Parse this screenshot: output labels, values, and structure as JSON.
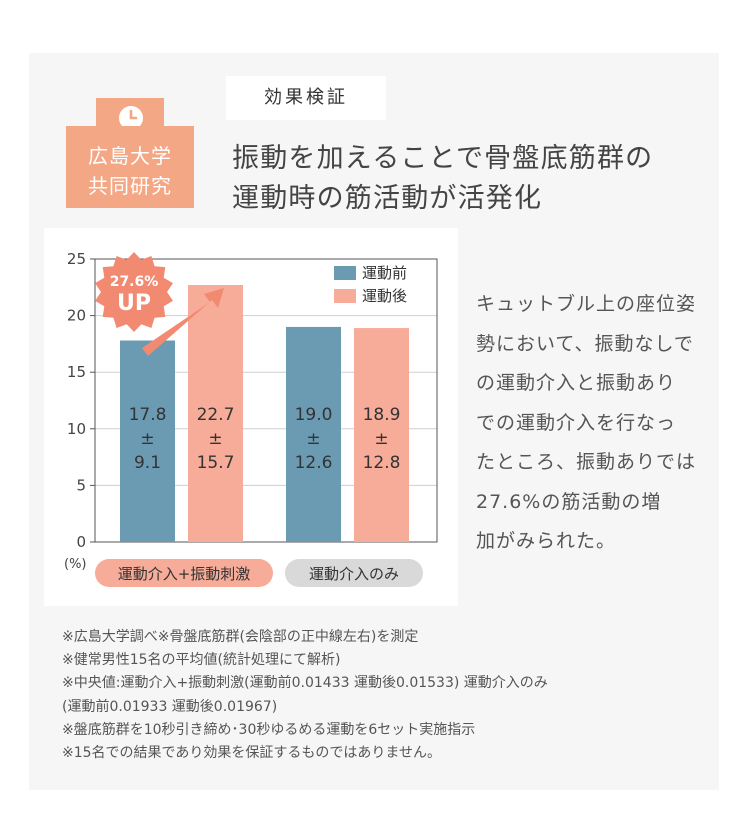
{
  "badge": {
    "line1": "広島大学",
    "line2": "共同研究",
    "icon": "clock-icon"
  },
  "label": "効果検証",
  "headline": {
    "line1": "振動を加えることで骨盤底筋群の",
    "line2": "運動時の筋活動が活発化"
  },
  "chart_data": {
    "type": "bar",
    "title": "",
    "ylabel": "(%)",
    "ylim": [
      0,
      25
    ],
    "yticks": [
      "0",
      "5",
      "10",
      "15",
      "20",
      "25"
    ],
    "categories": [
      "運動介入+振動刺激",
      "運動介入のみ"
    ],
    "series": [
      {
        "name": "運動前",
        "values": [
          17.8,
          19.0
        ],
        "labels": [
          [
            "17.8",
            "±",
            "9.1"
          ],
          [
            "19.0",
            "±",
            "12.6"
          ]
        ],
        "color": "#6b9ab3"
      },
      {
        "name": "運動後",
        "values": [
          22.7,
          18.9
        ],
        "labels": [
          [
            "22.7",
            "±",
            "15.7"
          ],
          [
            "18.9",
            "±",
            "12.8"
          ]
        ],
        "color": "#f6ac98"
      }
    ],
    "category_colors": [
      "#f6ac98",
      "#d9d9d9"
    ],
    "legend_position": "top-right",
    "annotation": {
      "line1": "27.6%",
      "line2": "UP",
      "color": "#f28a72"
    },
    "grid": true
  },
  "side_text": [
    "キュットブル上の座位姿",
    "勢において、振動なしで",
    "の運動介入と振動あり",
    "での運動介入を行なっ",
    "たところ、振動ありでは",
    "27.6%の筋活動の増",
    "加がみられた。"
  ],
  "notes": [
    "※広島大学調べ※骨盤底筋群(会陰部の正中線左右)を測定",
    "※健常男性15名の平均値(統計処理にて解析)",
    "※中央値:運動介入+振動刺激(運動前0.01433 運動後0.01533) 運動介入のみ",
    "(運動前0.01933 運動後0.01967)",
    "※盤底筋群を10秒引き締め･30秒ゆるめる運動を6セット実施指示",
    "※15名での結果であり効果を保証するものではありません。"
  ]
}
